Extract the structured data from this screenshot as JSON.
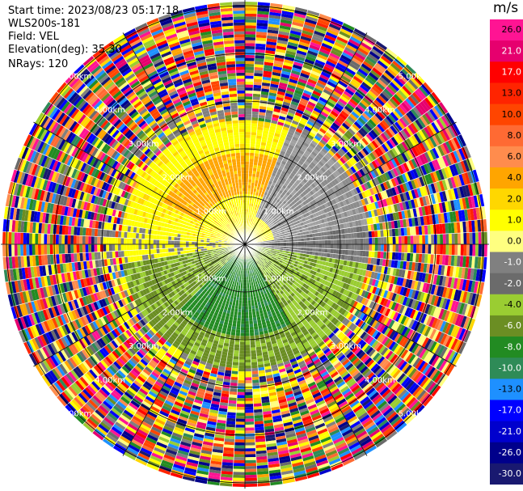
{
  "header": {
    "start_time": "Start time: 2023/08/23 05:17:18",
    "instrument": "WLS200s-181",
    "field": "Field: VEL",
    "elevation": "Elevation(deg): 35.30",
    "nrays": "NRays: 120"
  },
  "range_ring_labels": [
    "1.00km",
    "2.00km",
    "3.00km",
    "4.00km",
    "5.00km"
  ],
  "colorbar": {
    "unit": "m/s",
    "ticks": [
      "26.0",
      "21.0",
      "17.0",
      "13.0",
      "10.0",
      "8.0",
      "6.0",
      "4.0",
      "2.0",
      "1.0",
      "0.0",
      "-1.0",
      "-2.0",
      "-4.0",
      "-6.0",
      "-8.0",
      "-10.0",
      "-13.0",
      "-17.0",
      "-21.0",
      "-26.0",
      "-30.0"
    ],
    "colors": [
      "#ff1493",
      "#e6006e",
      "#ff0000",
      "#ff2400",
      "#ff4500",
      "#ff6a33",
      "#ff8c4d",
      "#ffa500",
      "#ffd700",
      "#ffff00",
      "#ffff80",
      "#808080",
      "#6b6b6b",
      "#9acd32",
      "#6b8e23",
      "#228b22",
      "#2e8b57",
      "#1e90ff",
      "#0000ff",
      "#0000cd",
      "#00008b",
      "#191970"
    ]
  },
  "chart_data": {
    "type": "heatmap",
    "field": "VEL",
    "units": "m/s",
    "nrays": 120,
    "elevation_deg": 35.3,
    "range_rings_km": [
      1,
      2,
      3,
      4,
      5
    ],
    "color_scale": [
      -30,
      -26,
      -21,
      -17,
      -13,
      -10,
      -8,
      -6,
      -4,
      -2,
      -1,
      0,
      1,
      2,
      4,
      6,
      8,
      10,
      13,
      17,
      21,
      26
    ]
  }
}
